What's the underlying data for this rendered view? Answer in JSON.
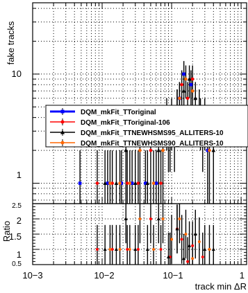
{
  "chart_data": [
    {
      "type": "scatter",
      "panel": "main",
      "ylabel": "fake tracks",
      "xscale": "log",
      "yscale": "log",
      "xlim": [
        0.001,
        1.2
      ],
      "ylim": [
        0.65,
        45
      ],
      "grid": true,
      "y_tick_labels": [
        "1",
        "10"
      ],
      "legend": [
        {
          "name": "DQM_mkFit_TToriginal",
          "color": "#0000ff",
          "marker": "square"
        },
        {
          "name": "DQM_mkFit_TToriginal-106",
          "color": "#ff0000",
          "marker": "circle"
        },
        {
          "name": "DQM_mkFit_TTNEWHSMS95_ALLITERS-10",
          "color": "#000000",
          "marker": "triangle"
        },
        {
          "name": "DQM_mkFit_TTNEWHSMS90_ALLITERS-10",
          "color": "#ff6600",
          "marker": "circle"
        }
      ],
      "legend_position": "middle",
      "series": [
        {
          "name": "DQM_mkFit_TToriginal",
          "x": [
            0.0048,
            0.012,
            0.019,
            0.027,
            0.042,
            0.06,
            0.085,
            0.11,
            0.13,
            0.15,
            0.19,
            0.26,
            0.33
          ],
          "y": [
            1,
            1,
            1,
            1,
            1,
            1,
            4,
            3,
            6,
            10,
            8,
            4,
            2
          ]
        },
        {
          "name": "DQM_mkFit_TToriginal-106",
          "x": [
            0.0085,
            0.014,
            0.023,
            0.033,
            0.05,
            0.07,
            0.095,
            0.12,
            0.14,
            0.17,
            0.2,
            0.28
          ],
          "y": [
            1,
            1,
            1,
            1,
            2,
            1,
            3,
            5,
            8,
            6,
            9,
            3
          ]
        },
        {
          "name": "DQM_mkFit_TTNEWHSMS95_ALLITERS-10",
          "x": [
            0.011,
            0.016,
            0.022,
            0.03,
            0.045,
            0.065,
            0.09,
            0.12,
            0.15,
            0.18,
            0.22,
            0.3,
            0.4
          ],
          "y": [
            1,
            1,
            2,
            1,
            1,
            2,
            3,
            5,
            7,
            9,
            6,
            4,
            2
          ]
        },
        {
          "name": "DQM_mkFit_TTNEWHSMS90_ALLITERS-10",
          "x": [
            0.013,
            0.018,
            0.025,
            0.035,
            0.055,
            0.075,
            0.1,
            0.13,
            0.16,
            0.2,
            0.25,
            0.35
          ],
          "y": [
            1,
            1,
            1,
            2,
            1,
            2,
            4,
            6,
            9,
            7,
            5,
            2
          ]
        }
      ]
    },
    {
      "type": "scatter",
      "panel": "ratio",
      "ylabel": "Ratio",
      "xlabel": "track min ΔR",
      "xscale": "log",
      "xlim": [
        0.001,
        1.2
      ],
      "ylim": [
        0.5,
        2.5
      ],
      "grid": true,
      "y_tick_labels": [
        "0.5",
        "1",
        "1.5",
        "2",
        "2.5"
      ],
      "x_tick_labels": [
        "10−3",
        "10−2",
        "10−1",
        "1"
      ],
      "series": [
        {
          "name": "DQM_mkFit_TToriginal-106",
          "x": [
            0.0085,
            0.014,
            0.023,
            0.033,
            0.05,
            0.07,
            0.095,
            0.12,
            0.14,
            0.17,
            0.2,
            0.28
          ],
          "y": [
            1,
            1,
            1,
            1,
            2,
            1,
            0.75,
            1.67,
            1.33,
            0.6,
            1.12,
            0.75
          ]
        },
        {
          "name": "DQM_mkFit_TTNEWHSMS95_ALLITERS-10",
          "x": [
            0.011,
            0.016,
            0.022,
            0.03,
            0.045,
            0.065,
            0.09,
            0.12,
            0.15,
            0.18,
            0.22,
            0.3,
            0.4
          ],
          "y": [
            1,
            1,
            2,
            1,
            1,
            2,
            0.75,
            1.67,
            0.7,
            1.12,
            1.5,
            1,
            1
          ]
        },
        {
          "name": "DQM_mkFit_TTNEWHSMS90_ALLITERS-10",
          "x": [
            0.013,
            0.018,
            0.025,
            0.035,
            0.055,
            0.075,
            0.1,
            0.13,
            0.16,
            0.2,
            0.25,
            0.35
          ],
          "y": [
            1,
            1,
            1,
            2,
            1,
            2,
            1.33,
            2,
            1.5,
            0.7,
            1.25,
            1
          ]
        }
      ]
    }
  ]
}
